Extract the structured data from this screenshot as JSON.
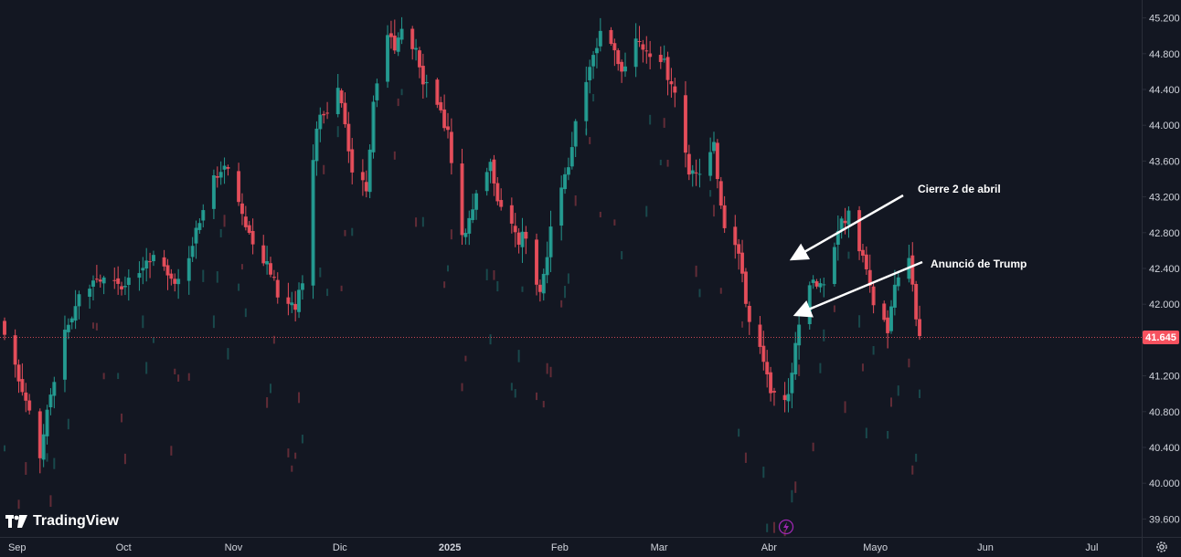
{
  "brand": {
    "name": "TradingView",
    "icon": "tradingview-logo-icon"
  },
  "last_price": "41.645",
  "colors": {
    "up": "#26a69a",
    "down": "#f7525f",
    "bg": "#131722",
    "grid": "#2a2e39",
    "text": "#d1d4dc",
    "accent": "#9c27b0"
  },
  "chart_data": {
    "type": "candlestick",
    "ylim": [
      39400,
      45400
    ],
    "yticks": [
      "45.200",
      "44.800",
      "44.400",
      "44.000",
      "43.600",
      "43.200",
      "42.800",
      "42.400",
      "42.000",
      "41.200",
      "40.800",
      "40.400",
      "40.000",
      "39.600"
    ],
    "xticks": [
      "Sep",
      "Oct",
      "Nov",
      "Dic",
      "2025",
      "Feb",
      "Mar",
      "Abr",
      "Mayo",
      "Jun",
      "Jul"
    ],
    "last_value": 41645,
    "annotations": [
      {
        "text": "Cierre 2 de abril"
      },
      {
        "text": "Anunció de Trump"
      }
    ],
    "anchors": [
      [
        "2024-08-30",
        41660
      ],
      [
        "2024-09-06",
        40850
      ],
      [
        "2024-09-09",
        40300
      ],
      [
        "2024-09-11",
        40800
      ],
      [
        "2024-09-16",
        41650
      ],
      [
        "2024-09-20",
        42100
      ],
      [
        "2024-09-27",
        42350
      ],
      [
        "2024-10-03",
        42200
      ],
      [
        "2024-10-08",
        42400
      ],
      [
        "2024-10-11",
        42600
      ],
      [
        "2024-10-16",
        42300
      ],
      [
        "2024-10-18",
        42250
      ],
      [
        "2024-10-23",
        42800
      ],
      [
        "2024-10-28",
        43400
      ],
      [
        "2024-11-01",
        43550
      ],
      [
        "2024-11-05",
        43000
      ],
      [
        "2024-11-08",
        42600
      ],
      [
        "2024-11-12",
        42500
      ],
      [
        "2024-11-15",
        42100
      ],
      [
        "2024-11-20",
        41950
      ],
      [
        "2024-11-22",
        42300
      ],
      [
        "2024-11-26",
        44000
      ],
      [
        "2024-11-29",
        44200
      ],
      [
        "2024-12-02",
        44400
      ],
      [
        "2024-12-04",
        44050
      ],
      [
        "2024-12-06",
        43500
      ],
      [
        "2024-12-10",
        43300
      ],
      [
        "2024-12-12",
        44200
      ],
      [
        "2024-12-16",
        45000
      ],
      [
        "2024-12-18",
        44900
      ],
      [
        "2024-12-20",
        45100
      ],
      [
        "2024-12-24",
        44800
      ],
      [
        "2024-12-26",
        44500
      ],
      [
        "2024-12-30",
        44200
      ],
      [
        "2025-01-02",
        43900
      ],
      [
        "2025-01-06",
        42800
      ],
      [
        "2025-01-08",
        42900
      ],
      [
        "2025-01-10",
        43300
      ],
      [
        "2025-01-14",
        43550
      ],
      [
        "2025-01-16",
        43100
      ],
      [
        "2025-01-20",
        42900
      ],
      [
        "2025-01-22",
        42700
      ],
      [
        "2025-01-24",
        42800
      ],
      [
        "2025-01-28",
        42100
      ],
      [
        "2025-01-31",
        42800
      ],
      [
        "2025-02-04",
        43400
      ],
      [
        "2025-02-07",
        44000
      ],
      [
        "2025-02-11",
        44600
      ],
      [
        "2025-02-14",
        45000
      ],
      [
        "2025-02-18",
        44800
      ],
      [
        "2025-02-21",
        44600
      ],
      [
        "2025-02-25",
        45000
      ],
      [
        "2025-02-28",
        44700
      ],
      [
        "2025-03-04",
        44700
      ],
      [
        "2025-03-07",
        44300
      ],
      [
        "2025-03-11",
        43500
      ],
      [
        "2025-03-14",
        43400
      ],
      [
        "2025-03-18",
        43800
      ],
      [
        "2025-03-21",
        42800
      ],
      [
        "2025-03-25",
        42600
      ],
      [
        "2025-03-28",
        41800
      ],
      [
        "2025-04-01",
        41400
      ],
      [
        "2025-04-03",
        41000
      ],
      [
        "2025-04-07",
        40900
      ],
      [
        "2025-04-09",
        41200
      ],
      [
        "2025-04-11",
        41800
      ],
      [
        "2025-04-15",
        42300
      ],
      [
        "2025-04-18",
        42200
      ],
      [
        "2025-04-22",
        42850
      ],
      [
        "2025-04-25",
        43000
      ],
      [
        "2025-04-29",
        42550
      ],
      [
        "2025-05-02",
        42000
      ],
      [
        "2025-05-06",
        41700
      ],
      [
        "2025-05-08",
        42250
      ],
      [
        "2025-05-12",
        42500
      ],
      [
        "2025-05-14",
        41850
      ],
      [
        "2025-05-15",
        41645
      ]
    ]
  }
}
